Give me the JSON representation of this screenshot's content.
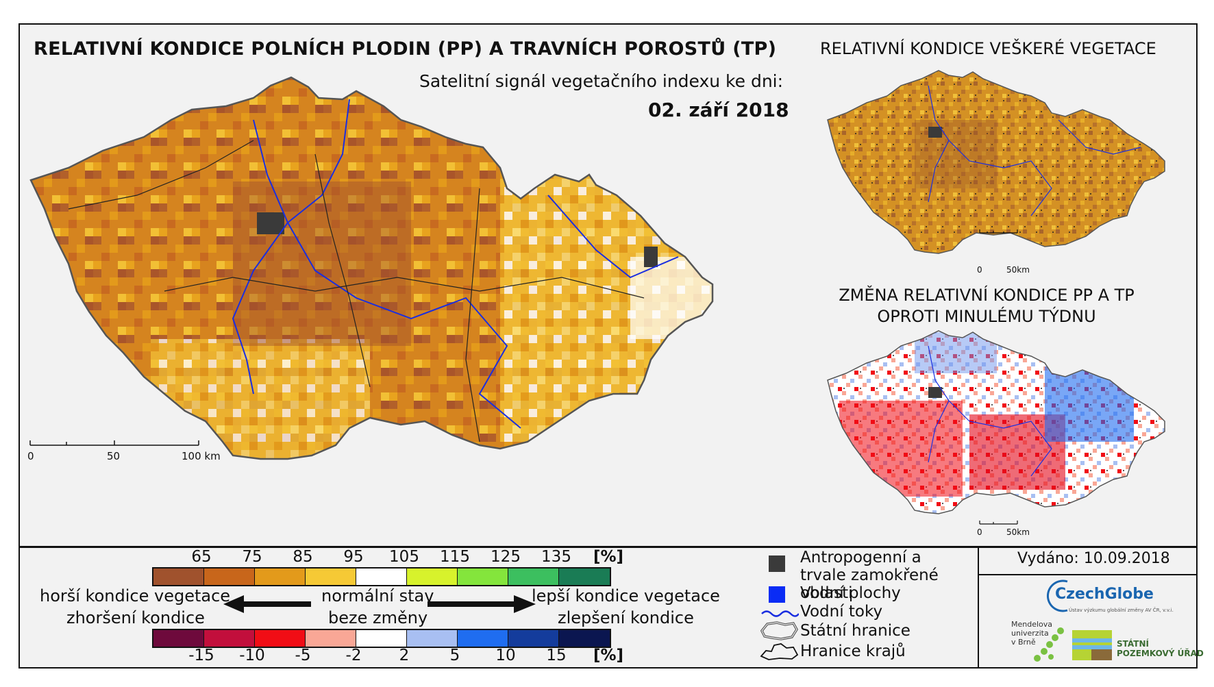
{
  "titles": {
    "main": "RELATIVNÍ KONDICE POLNÍCH PLODIN (PP) A TRAVNÍCH POROSTŮ (TP)",
    "subtitle": "Satelitní signál vegetačního indexu ke dni:",
    "date": "02. září 2018",
    "vegetation": "RELATIVNÍ KONDICE VEŠKERÉ VEGETACE",
    "change": "ZMĚNA RELATIVNÍ KONDICE PP A TP OPROTI MINULÉMU TÝDNU"
  },
  "scalebars": {
    "main": {
      "labels": [
        "0",
        "50",
        "100 km"
      ]
    },
    "small": {
      "labels": [
        "0",
        "50km"
      ]
    }
  },
  "condition_legend": {
    "colors": [
      "#a0522d",
      "#c8661b",
      "#e39a1b",
      "#f6c935",
      "#ffffff",
      "#d7f22c",
      "#84e53c",
      "#3cbf5f",
      "#1a7c55"
    ],
    "ticks": [
      "65",
      "75",
      "85",
      "95",
      "105",
      "115",
      "125",
      "135"
    ],
    "unit": "[%]"
  },
  "change_legend": {
    "colors": [
      "#6e0a3c",
      "#c20f3c",
      "#f10d15",
      "#f9a796",
      "#ffffff",
      "#a8bff2",
      "#1f6df0",
      "#143c9c",
      "#0b1650"
    ],
    "ticks": [
      "-15",
      "-10",
      "-5",
      "-2",
      "2",
      "5",
      "10",
      "15"
    ],
    "unit": "[%]"
  },
  "labels": {
    "worse_veg": "horší kondice vegetace",
    "worse_change": "zhoršení kondice",
    "normal": "normální stav",
    "no_change": "beze změny",
    "better_veg": "lepší kondice vegetace",
    "better_change": "zlepšení kondice"
  },
  "map_legend": [
    {
      "symbol": "dark-gray-square",
      "color": "#3a3a3a",
      "text": "Antropogenní a trvale zamokřené oblasti"
    },
    {
      "symbol": "blue-square",
      "color": "#0a2cf5",
      "text": "Vodní plochy"
    },
    {
      "symbol": "blue-wavy-line",
      "color": "#1a2ee0",
      "text": "Vodní toky"
    },
    {
      "symbol": "state-border-outline",
      "color": "#555555",
      "text": "Státní hranice"
    },
    {
      "symbol": "region-border-outline",
      "color": "#111111",
      "text": "Hranice krajů"
    }
  ],
  "issued": "Vydáno: 10.09.2018",
  "logos": {
    "czechglobe": "CzechGlobe",
    "czechglobe_sub": "Ústav výzkumu globální změny AV ČR, v.v.i.",
    "mendel": [
      "Mendelova",
      "univerzita",
      "v Brně"
    ],
    "spu": [
      "STÁTNÍ",
      "POZEMKOVÝ ÚŘAD"
    ]
  }
}
